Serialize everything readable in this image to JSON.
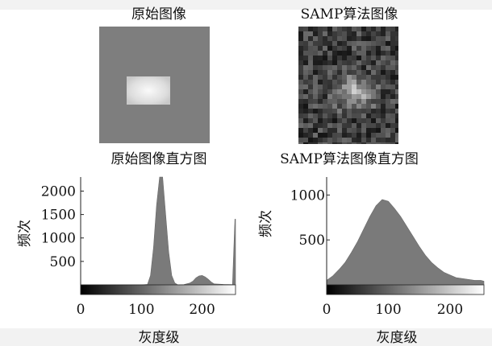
{
  "panels": {
    "top_left_title": "原始图像",
    "top_right_title": "SAMP算法图像",
    "bottom_left_title": "原始图像直方图",
    "bottom_right_title": "SAMP算法图像直方图",
    "left_xlabel": "灰度级",
    "right_xlabel": "灰度级"
  },
  "chart_data": [
    {
      "type": "area",
      "title": "原始图像直方图",
      "xlabel": "灰度级",
      "ylabel": "频次",
      "xlim": [
        0,
        255
      ],
      "ylim": [
        0,
        2300
      ],
      "xticks": [
        0,
        100,
        200
      ],
      "yticks": [
        500,
        1000,
        1500,
        2000
      ],
      "x": [
        0,
        100,
        110,
        115,
        120,
        125,
        130,
        135,
        140,
        145,
        150,
        155,
        160,
        170,
        180,
        185,
        190,
        195,
        200,
        205,
        210,
        215,
        220,
        235,
        250,
        254,
        255
      ],
      "values": [
        0,
        0,
        10,
        200,
        800,
        1700,
        2300,
        2300,
        1500,
        700,
        200,
        40,
        0,
        5,
        40,
        80,
        150,
        190,
        200,
        170,
        120,
        60,
        20,
        10,
        5,
        1400,
        1400
      ],
      "colorbar": true
    },
    {
      "type": "area",
      "title": "SAMP算法图像直方图",
      "xlabel": "灰度级",
      "ylabel": "频次",
      "xlim": [
        0,
        255
      ],
      "ylim": [
        0,
        1200
      ],
      "xticks": [
        0,
        100,
        200
      ],
      "yticks": [
        500,
        1000
      ],
      "x": [
        0,
        10,
        20,
        30,
        40,
        50,
        60,
        70,
        80,
        90,
        100,
        110,
        120,
        130,
        140,
        150,
        160,
        170,
        180,
        190,
        200,
        210,
        220,
        230,
        240,
        250,
        255
      ],
      "values": [
        50,
        100,
        170,
        250,
        360,
        480,
        620,
        760,
        880,
        950,
        930,
        850,
        760,
        650,
        540,
        430,
        330,
        250,
        190,
        140,
        110,
        80,
        70,
        60,
        50,
        50,
        40
      ],
      "colorbar": true
    }
  ]
}
